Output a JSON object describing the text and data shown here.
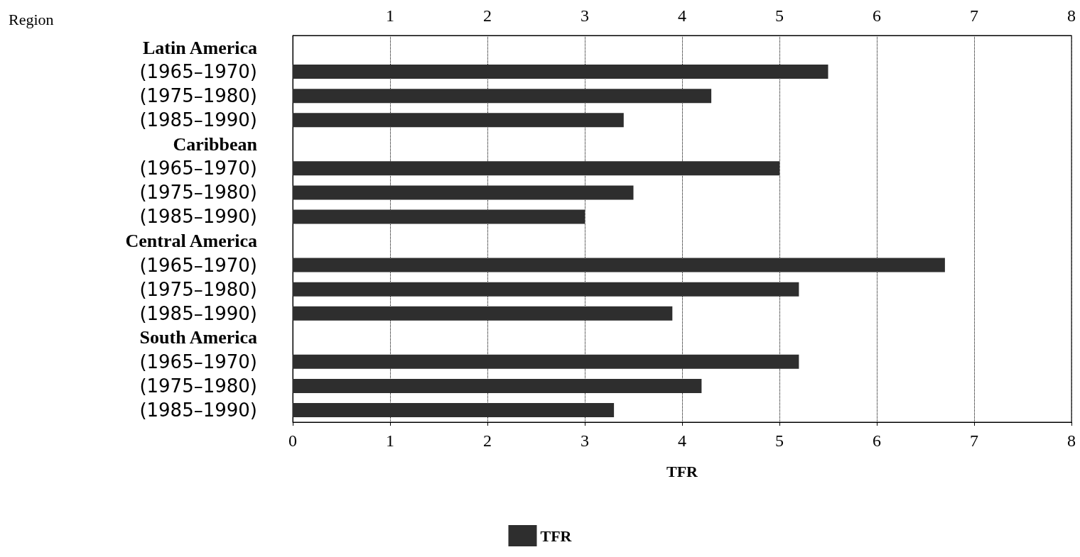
{
  "chart_data": {
    "type": "bar",
    "orientation": "horizontal",
    "ylabel": "Region",
    "xlabel": "TFR",
    "categories": [
      "Latin America",
      "(1965–1970)",
      "(1975–1980)",
      "(1985–1990)",
      "Caribbean",
      "(1965–1970)",
      "(1975–1980)",
      "(1985–1990)",
      "Central America",
      "(1965–1970)",
      "(1975–1980)",
      "(1985–1990)",
      "South America",
      "(1965–1970)",
      "(1975–1980)",
      "(1985–1990)"
    ],
    "series": [
      {
        "name": "TFR",
        "color": "#2e2e2e",
        "values": [
          null,
          5.5,
          4.3,
          3.4,
          null,
          5.0,
          3.5,
          3.0,
          null,
          6.7,
          5.2,
          3.9,
          null,
          5.2,
          4.2,
          3.3
        ]
      }
    ],
    "xlim": [
      0,
      8
    ],
    "xticks": [
      0,
      1,
      2,
      3,
      4,
      5,
      6,
      7,
      8
    ],
    "x2lim": [
      0,
      8
    ],
    "x2ticks": [
      1,
      2,
      3,
      4,
      5,
      6,
      7,
      8
    ],
    "grid": "x",
    "legend": "bottom"
  }
}
